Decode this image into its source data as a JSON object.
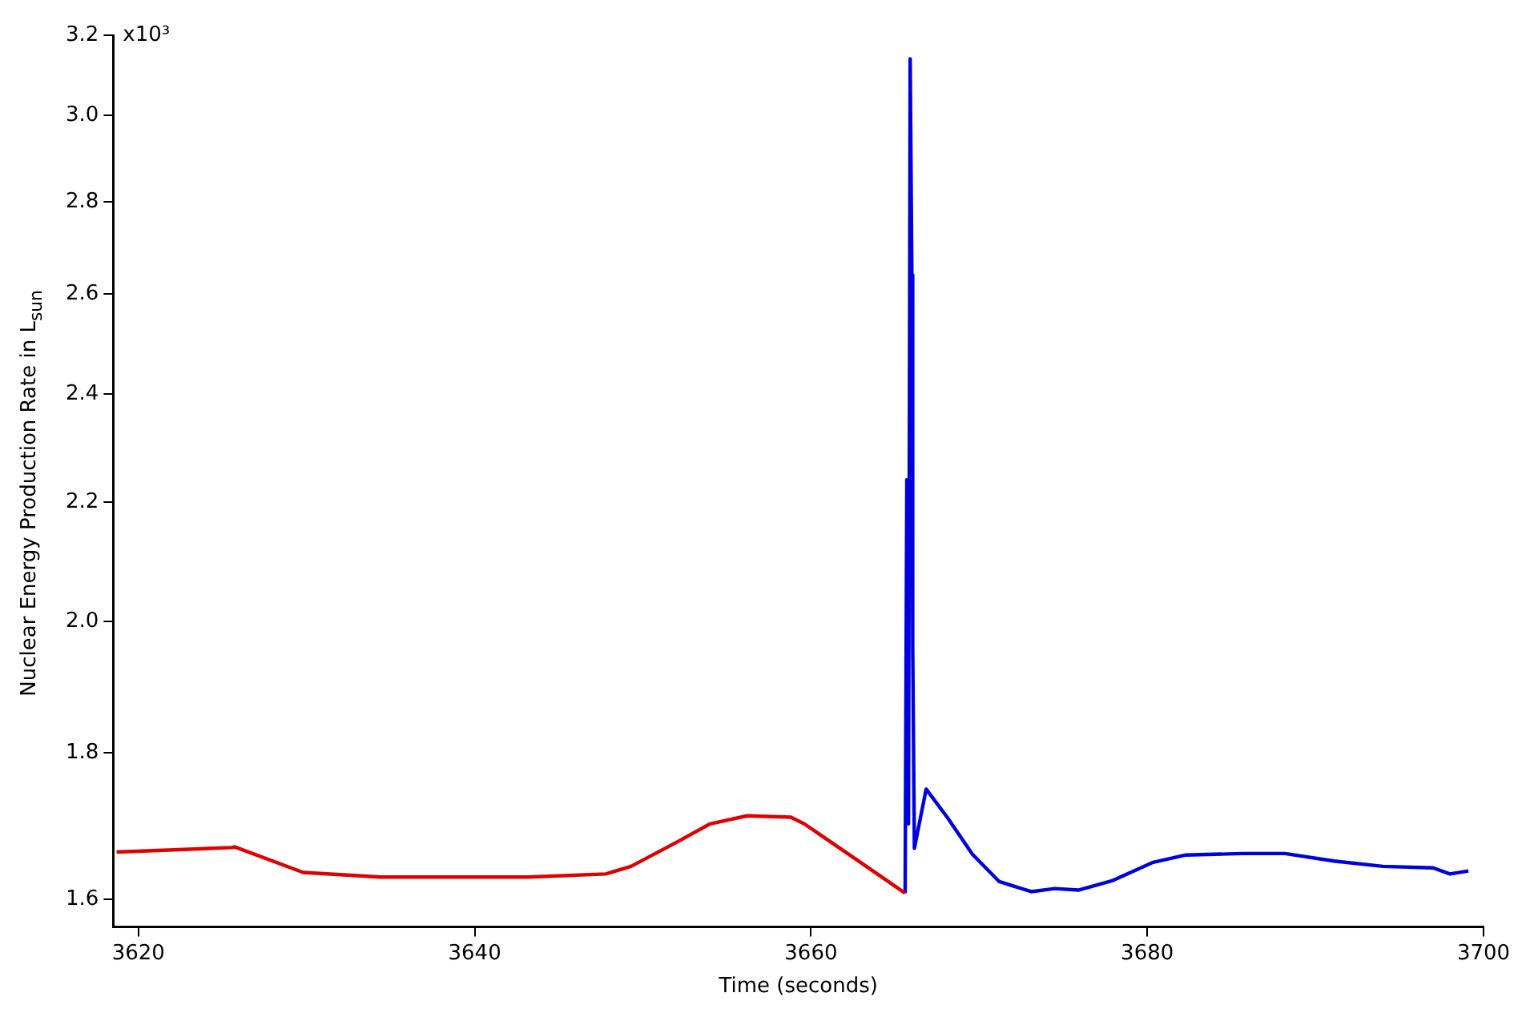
{
  "chart_data": {
    "type": "line",
    "xlabel": "Time (seconds)",
    "ylabel": "Nuclear Energy Production Rate in L$_{sun}$",
    "log": "y",
    "grid": false,
    "legend": false,
    "marker": "none",
    "line_style": "solid",
    "xlim": [
      3618.5,
      3700
    ],
    "xticks": [
      3620,
      3640,
      3660,
      3680,
      3700
    ],
    "ylim": [
      1.565,
      3.2
    ],
    "yticks": [
      1.6,
      1.8,
      {
        "value": 2,
        "label": "2.0"
      },
      2.2,
      2.4,
      2.6,
      2.8,
      {
        "value": 3,
        "label": "3.0"
      },
      3.2
    ],
    "annotations": [
      "x10³"
    ],
    "series": [
      {
        "color": "#e00000",
        "x": [
          3618.7,
          3625.6,
          3625.7,
          3629.8,
          3634.4,
          3643.2,
          3647.8,
          3649.3,
          3652,
          3654,
          3656.2,
          3658.8,
          3659.6,
          3662.7,
          3665.6
        ],
        "values": [
          1.662,
          1.668,
          1.669,
          1.635,
          1.629,
          1.629,
          1.633,
          1.643,
          1.675,
          1.7,
          1.711,
          1.709,
          1.7,
          1.652,
          1.608
        ]
      },
      {
        "color": "#0000dd",
        "x": [
          3665.6,
          3665.7,
          3665.8,
          3665.9,
          3666.0,
          3666.05,
          3666.15,
          3666.85,
          3668.1,
          3669.6,
          3671.2,
          3673.1,
          3674.5,
          3675.9,
          3677.9,
          3680.3,
          3682.3,
          3685.7,
          3688.2,
          3691.1,
          3694.0,
          3697.0,
          3698.0,
          3699.1
        ],
        "values": [
          1.608,
          2.24,
          1.7,
          3.14,
          2.64,
          1.96,
          1.667,
          1.748,
          1.709,
          1.659,
          1.623,
          1.61,
          1.614,
          1.612,
          1.624,
          1.648,
          1.658,
          1.66,
          1.66,
          1.65,
          1.643,
          1.641,
          1.633,
          1.637
        ]
      }
    ]
  }
}
